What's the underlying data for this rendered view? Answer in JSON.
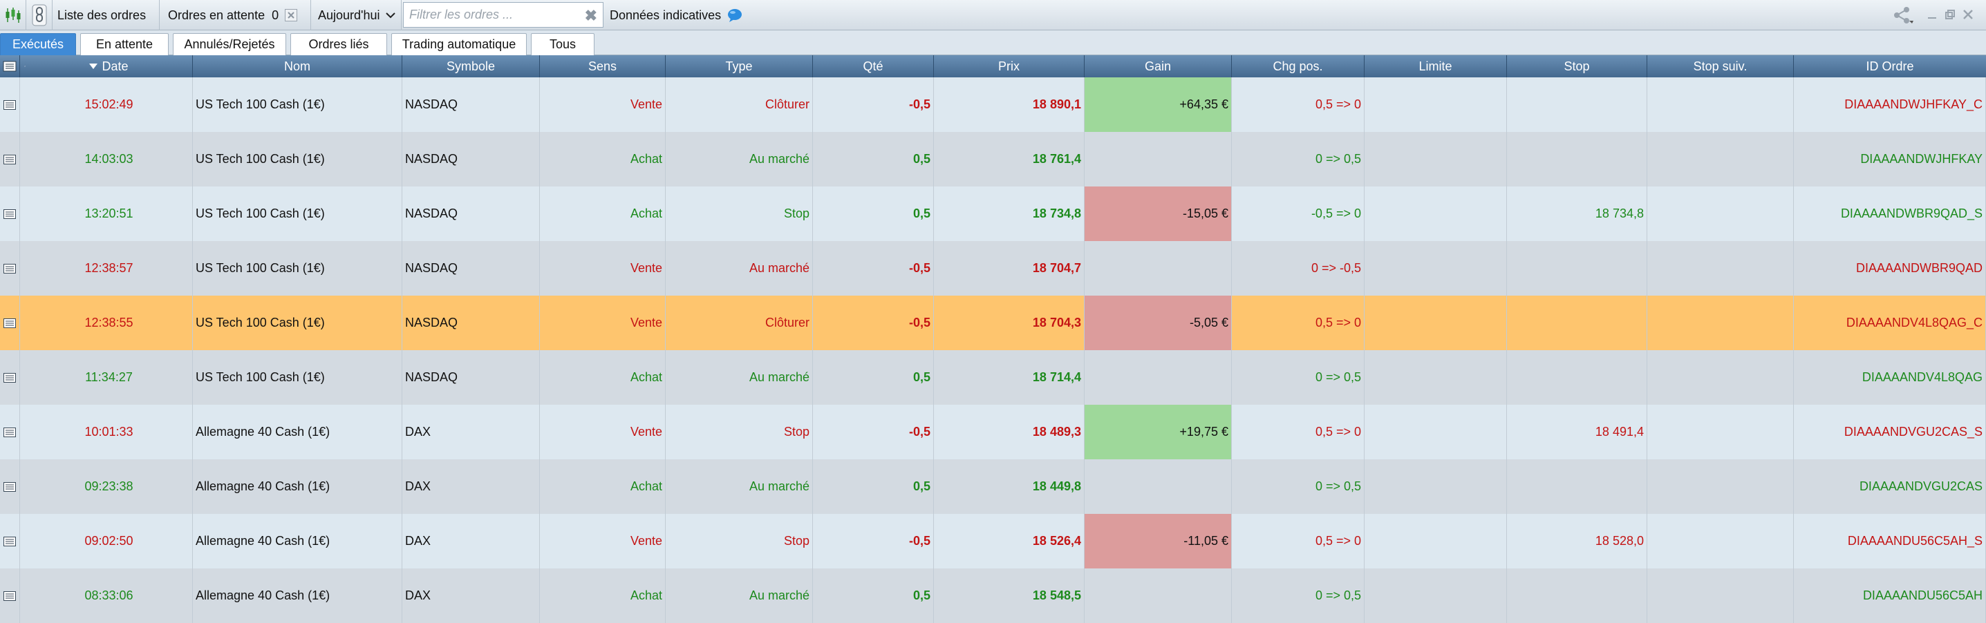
{
  "toolbar": {
    "title": "Liste des ordres",
    "pending_label": "Ordres en attente",
    "pending_count": "0",
    "period": "Aujourd'hui",
    "filter_placeholder": "Filtrer les ordres ...",
    "indicative": "Données indicatives"
  },
  "tabs": [
    "Exécutés",
    "En attente",
    "Annulés/Rejetés",
    "Ordres liés",
    "Trading automatique",
    "Tous"
  ],
  "columns": {
    "date": "Date",
    "name": "Nom",
    "symbol": "Symbole",
    "side": "Sens",
    "type": "Type",
    "qty": "Qté",
    "price": "Prix",
    "gain": "Gain",
    "chg": "Chg pos.",
    "limit": "Limite",
    "stop": "Stop",
    "stop_next": "Stop suiv.",
    "id": "ID Ordre"
  },
  "rows": [
    {
      "time": "15:02:49",
      "name": "US Tech 100 Cash (1€)",
      "symbol": "NASDAQ",
      "side": "Vente",
      "type": "Clôturer",
      "qty": "-0,5",
      "price": "18 890,1",
      "gain": "+64,35 €",
      "chg": "0,5 => 0",
      "limit": "",
      "stop": "",
      "stop_next": "",
      "id": "DIAAAANDWJHFKAY_C"
    },
    {
      "time": "14:03:03",
      "name": "US Tech 100 Cash (1€)",
      "symbol": "NASDAQ",
      "side": "Achat",
      "type": "Au marché",
      "qty": "0,5",
      "price": "18 761,4",
      "gain": "",
      "chg": "0 => 0,5",
      "limit": "",
      "stop": "",
      "stop_next": "",
      "id": "DIAAAANDWJHFKAY"
    },
    {
      "time": "13:20:51",
      "name": "US Tech 100 Cash (1€)",
      "symbol": "NASDAQ",
      "side": "Achat",
      "type": "Stop",
      "qty": "0,5",
      "price": "18 734,8",
      "gain": "-15,05 €",
      "chg": "-0,5 => 0",
      "limit": "",
      "stop": "18 734,8",
      "stop_next": "",
      "id": "DIAAAANDWBR9QAD_S"
    },
    {
      "time": "12:38:57",
      "name": "US Tech 100 Cash (1€)",
      "symbol": "NASDAQ",
      "side": "Vente",
      "type": "Au marché",
      "qty": "-0,5",
      "price": "18 704,7",
      "gain": "",
      "chg": "0 => -0,5",
      "limit": "",
      "stop": "",
      "stop_next": "",
      "id": "DIAAAANDWBR9QAD"
    },
    {
      "time": "12:38:55",
      "name": "US Tech 100 Cash (1€)",
      "symbol": "NASDAQ",
      "side": "Vente",
      "type": "Clôturer",
      "qty": "-0,5",
      "price": "18 704,3",
      "gain": "-5,05 €",
      "chg": "0,5 => 0",
      "limit": "",
      "stop": "",
      "stop_next": "",
      "id": "DIAAAANDV4L8QAG_C"
    },
    {
      "time": "11:34:27",
      "name": "US Tech 100 Cash (1€)",
      "symbol": "NASDAQ",
      "side": "Achat",
      "type": "Au marché",
      "qty": "0,5",
      "price": "18 714,4",
      "gain": "",
      "chg": "0 => 0,5",
      "limit": "",
      "stop": "",
      "stop_next": "",
      "id": "DIAAAANDV4L8QAG"
    },
    {
      "time": "10:01:33",
      "name": "Allemagne 40 Cash (1€)",
      "symbol": "DAX",
      "side": "Vente",
      "type": "Stop",
      "qty": "-0,5",
      "price": "18 489,3",
      "gain": "+19,75 €",
      "chg": "0,5 => 0",
      "limit": "",
      "stop": "18 491,4",
      "stop_next": "",
      "id": "DIAAAANDVGU2CAS_S"
    },
    {
      "time": "09:23:38",
      "name": "Allemagne 40 Cash (1€)",
      "symbol": "DAX",
      "side": "Achat",
      "type": "Au marché",
      "qty": "0,5",
      "price": "18 449,8",
      "gain": "",
      "chg": "0 => 0,5",
      "limit": "",
      "stop": "",
      "stop_next": "",
      "id": "DIAAAANDVGU2CAS"
    },
    {
      "time": "09:02:50",
      "name": "Allemagne 40 Cash (1€)",
      "symbol": "DAX",
      "side": "Vente",
      "type": "Stop",
      "qty": "-0,5",
      "price": "18 526,4",
      "gain": "-11,05 €",
      "chg": "0,5 => 0",
      "limit": "",
      "stop": "18 528,0",
      "stop_next": "",
      "id": "DIAAAANDU56C5AH_S"
    },
    {
      "time": "08:33:06",
      "name": "Allemagne 40 Cash (1€)",
      "symbol": "DAX",
      "side": "Achat",
      "type": "Au marché",
      "qty": "0,5",
      "price": "18 548,5",
      "gain": "",
      "chg": "0 => 0,5",
      "limit": "",
      "stop": "",
      "stop_next": "",
      "id": "DIAAAANDU56C5AH"
    }
  ],
  "colors": {
    "sell": "#c41414",
    "buy": "#1d8a1d",
    "gain_pos_bg": "#9ed89a",
    "gain_neg_bg": "#dc9c9c",
    "row_light": "#dde8f0",
    "row_dark": "#d3dae1",
    "row_selected": "#fec56e",
    "header": "#4f7399",
    "tab_active": "#3f8ad6"
  },
  "selected_row": 4,
  "icons": [
    "chart-candles-icon",
    "link-icon",
    "clear-icon",
    "chevron-down-icon",
    "info-bubble-icon",
    "share-icon",
    "minimize-icon",
    "restore-icon",
    "close-icon",
    "column-settings-icon",
    "wrench-icon",
    "sort-desc-icon",
    "row-detail-icon"
  ]
}
